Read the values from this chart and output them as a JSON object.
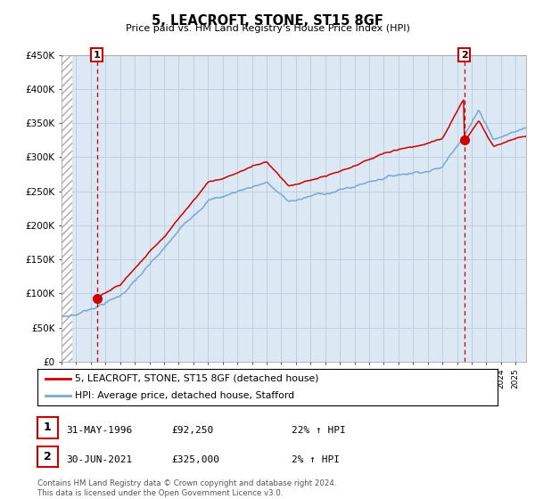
{
  "title": "5, LEACROFT, STONE, ST15 8GF",
  "subtitle": "Price paid vs. HM Land Registry's House Price Index (HPI)",
  "x_start_year": 1994,
  "x_end_year": 2025.7,
  "y_min": 0,
  "y_max": 450000,
  "y_ticks": [
    0,
    50000,
    100000,
    150000,
    200000,
    250000,
    300000,
    350000,
    400000,
    450000
  ],
  "y_tick_labels": [
    "£0",
    "£50K",
    "£100K",
    "£150K",
    "£200K",
    "£250K",
    "£300K",
    "£350K",
    "£400K",
    "£450K"
  ],
  "sale1_year": 1996.42,
  "sale1_price": 92250,
  "sale2_year": 2021.5,
  "sale2_price": 325000,
  "red_line_color": "#cc0000",
  "blue_line_color": "#7aa8d2",
  "grid_color": "#bbccdd",
  "background_color": "#ffffff",
  "plot_bg_color": "#dce9f5",
  "legend_label_red": "5, LEACROFT, STONE, ST15 8GF (detached house)",
  "legend_label_blue": "HPI: Average price, detached house, Stafford",
  "footer": "Contains HM Land Registry data © Crown copyright and database right 2024.\nThis data is licensed under the Open Government Licence v3.0.",
  "table_row1": [
    "1",
    "31-MAY-1996",
    "£92,250",
    "22% ↑ HPI"
  ],
  "table_row2": [
    "2",
    "30-JUN-2021",
    "£325,000",
    "2% ↑ HPI"
  ]
}
